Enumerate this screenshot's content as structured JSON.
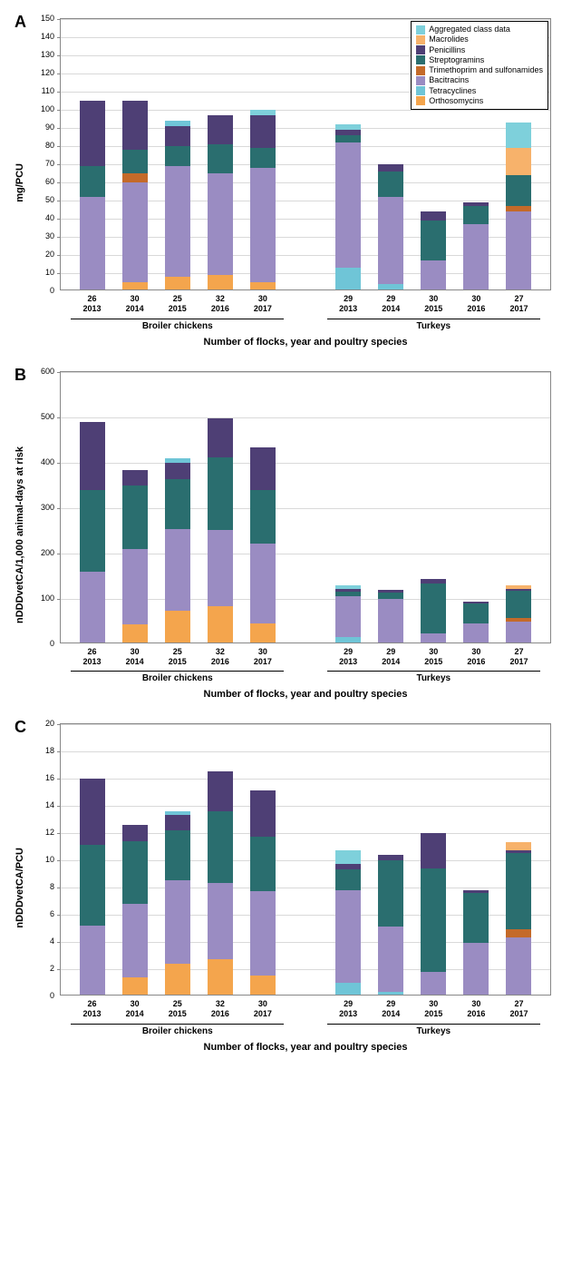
{
  "colors": {
    "aggregated": "#7ed0db",
    "macrolides": "#f7b26b",
    "penicillins": "#4e3f75",
    "streptogramins": "#2a6e6f",
    "trimethoprim": "#c46a29",
    "bacitracins": "#9a8cc2",
    "tetracyclines": "#6fc5d7",
    "orthosomycins": "#f4a54d",
    "grid": "#d9d9d9",
    "border": "#888888",
    "background": "#ffffff"
  },
  "legend": [
    {
      "key": "aggregated",
      "label": "Aggregated class data"
    },
    {
      "key": "macrolides",
      "label": "Macrolides"
    },
    {
      "key": "penicillins",
      "label": "Penicillins"
    },
    {
      "key": "streptogramins",
      "label": "Streptogramins"
    },
    {
      "key": "trimethoprim",
      "label": "Trimethoprim and sulfonamides"
    },
    {
      "key": "bacitracins",
      "label": "Bacitracins"
    },
    {
      "key": "tetracyclines",
      "label": "Tetracyclines"
    },
    {
      "key": "orthosomycins",
      "label": "Orthosomycins"
    }
  ],
  "x_categories": [
    {
      "flocks": "26",
      "year": "2013"
    },
    {
      "flocks": "30",
      "year": "2014"
    },
    {
      "flocks": "25",
      "year": "2015"
    },
    {
      "flocks": "32",
      "year": "2016"
    },
    {
      "flocks": "30",
      "year": "2017"
    },
    {
      "flocks": "",
      "year": ""
    },
    {
      "flocks": "29",
      "year": "2013"
    },
    {
      "flocks": "29",
      "year": "2014"
    },
    {
      "flocks": "30",
      "year": "2015"
    },
    {
      "flocks": "30",
      "year": "2016"
    },
    {
      "flocks": "27",
      "year": "2017"
    }
  ],
  "groups": [
    {
      "label": "Broiler chickens",
      "span": 5
    },
    {
      "label": "",
      "span": 1
    },
    {
      "label": "Turkeys",
      "span": 5
    }
  ],
  "x_title": "Number of flocks, year and poultry species",
  "panels": [
    {
      "id": "A",
      "ylabel": "mg/PCU",
      "ylim": [
        0,
        150
      ],
      "ytick_step": 10,
      "show_legend": true,
      "bars": [
        [
          {
            "k": "bacitracins",
            "v": 51
          },
          {
            "k": "streptogramins",
            "v": 17
          },
          {
            "k": "penicillins",
            "v": 36
          }
        ],
        [
          {
            "k": "orthosomycins",
            "v": 4
          },
          {
            "k": "bacitracins",
            "v": 55
          },
          {
            "k": "trimethoprim",
            "v": 5
          },
          {
            "k": "streptogramins",
            "v": 13
          },
          {
            "k": "penicillins",
            "v": 27
          }
        ],
        [
          {
            "k": "orthosomycins",
            "v": 7
          },
          {
            "k": "bacitracins",
            "v": 61
          },
          {
            "k": "streptogramins",
            "v": 11
          },
          {
            "k": "penicillins",
            "v": 11
          },
          {
            "k": "tetracyclines",
            "v": 3
          }
        ],
        [
          {
            "k": "orthosomycins",
            "v": 8
          },
          {
            "k": "bacitracins",
            "v": 56
          },
          {
            "k": "streptogramins",
            "v": 16
          },
          {
            "k": "penicillins",
            "v": 16
          }
        ],
        [
          {
            "k": "orthosomycins",
            "v": 4
          },
          {
            "k": "bacitracins",
            "v": 63
          },
          {
            "k": "streptogramins",
            "v": 11
          },
          {
            "k": "penicillins",
            "v": 18
          },
          {
            "k": "aggregated",
            "v": 3
          }
        ],
        [],
        [
          {
            "k": "tetracyclines",
            "v": 12
          },
          {
            "k": "bacitracins",
            "v": 69
          },
          {
            "k": "streptogramins",
            "v": 4
          },
          {
            "k": "penicillins",
            "v": 3
          },
          {
            "k": "aggregated",
            "v": 3
          }
        ],
        [
          {
            "k": "tetracyclines",
            "v": 3
          },
          {
            "k": "bacitracins",
            "v": 48
          },
          {
            "k": "streptogramins",
            "v": 14
          },
          {
            "k": "penicillins",
            "v": 4
          }
        ],
        [
          {
            "k": "bacitracins",
            "v": 16
          },
          {
            "k": "streptogramins",
            "v": 22
          },
          {
            "k": "penicillins",
            "v": 5
          }
        ],
        [
          {
            "k": "bacitracins",
            "v": 36
          },
          {
            "k": "streptogramins",
            "v": 10
          },
          {
            "k": "penicillins",
            "v": 2
          }
        ],
        [
          {
            "k": "bacitracins",
            "v": 43
          },
          {
            "k": "trimethoprim",
            "v": 3
          },
          {
            "k": "streptogramins",
            "v": 17
          },
          {
            "k": "macrolides",
            "v": 15
          },
          {
            "k": "aggregated",
            "v": 14
          }
        ]
      ]
    },
    {
      "id": "B",
      "ylabel": "nDDDvetCA/1,000 animal-days at risk",
      "ylim": [
        0,
        600
      ],
      "ytick_step": 100,
      "show_legend": false,
      "bars": [
        [
          {
            "k": "bacitracins",
            "v": 155
          },
          {
            "k": "streptogramins",
            "v": 180
          },
          {
            "k": "penicillins",
            "v": 150
          }
        ],
        [
          {
            "k": "orthosomycins",
            "v": 40
          },
          {
            "k": "bacitracins",
            "v": 165
          },
          {
            "k": "streptogramins",
            "v": 140
          },
          {
            "k": "penicillins",
            "v": 35
          }
        ],
        [
          {
            "k": "orthosomycins",
            "v": 70
          },
          {
            "k": "bacitracins",
            "v": 180
          },
          {
            "k": "streptogramins",
            "v": 110
          },
          {
            "k": "penicillins",
            "v": 35
          },
          {
            "k": "tetracyclines",
            "v": 10
          }
        ],
        [
          {
            "k": "orthosomycins",
            "v": 80
          },
          {
            "k": "bacitracins",
            "v": 168
          },
          {
            "k": "streptogramins",
            "v": 160
          },
          {
            "k": "penicillins",
            "v": 85
          }
        ],
        [
          {
            "k": "orthosomycins",
            "v": 42
          },
          {
            "k": "bacitracins",
            "v": 175
          },
          {
            "k": "streptogramins",
            "v": 118
          },
          {
            "k": "penicillins",
            "v": 95
          }
        ],
        [],
        [
          {
            "k": "tetracyclines",
            "v": 12
          },
          {
            "k": "bacitracins",
            "v": 90
          },
          {
            "k": "streptogramins",
            "v": 10
          },
          {
            "k": "penicillins",
            "v": 6
          },
          {
            "k": "aggregated",
            "v": 8
          }
        ],
        [
          {
            "k": "bacitracins",
            "v": 95
          },
          {
            "k": "streptogramins",
            "v": 15
          },
          {
            "k": "penicillins",
            "v": 5
          }
        ],
        [
          {
            "k": "bacitracins",
            "v": 20
          },
          {
            "k": "streptogramins",
            "v": 110
          },
          {
            "k": "penicillins",
            "v": 10
          }
        ],
        [
          {
            "k": "bacitracins",
            "v": 42
          },
          {
            "k": "streptogramins",
            "v": 44
          },
          {
            "k": "penicillins",
            "v": 3
          }
        ],
        [
          {
            "k": "bacitracins",
            "v": 46
          },
          {
            "k": "trimethoprim",
            "v": 8
          },
          {
            "k": "streptogramins",
            "v": 60
          },
          {
            "k": "penicillins",
            "v": 4
          },
          {
            "k": "macrolides",
            "v": 8
          }
        ]
      ]
    },
    {
      "id": "C",
      "ylabel": "nDDDvetCA/PCU",
      "ylim": [
        0,
        20
      ],
      "ytick_step": 2,
      "show_legend": false,
      "bars": [
        [
          {
            "k": "bacitracins",
            "v": 5.1
          },
          {
            "k": "streptogramins",
            "v": 5.9
          },
          {
            "k": "penicillins",
            "v": 4.9
          }
        ],
        [
          {
            "k": "orthosomycins",
            "v": 1.3
          },
          {
            "k": "bacitracins",
            "v": 5.4
          },
          {
            "k": "streptogramins",
            "v": 4.6
          },
          {
            "k": "penicillins",
            "v": 1.2
          }
        ],
        [
          {
            "k": "orthosomycins",
            "v": 2.3
          },
          {
            "k": "bacitracins",
            "v": 6.1
          },
          {
            "k": "streptogramins",
            "v": 3.7
          },
          {
            "k": "penicillins",
            "v": 1.1
          },
          {
            "k": "tetracyclines",
            "v": 0.3
          }
        ],
        [
          {
            "k": "orthosomycins",
            "v": 2.6
          },
          {
            "k": "bacitracins",
            "v": 5.6
          },
          {
            "k": "streptogramins",
            "v": 5.3
          },
          {
            "k": "penicillins",
            "v": 2.9
          }
        ],
        [
          {
            "k": "orthosomycins",
            "v": 1.4
          },
          {
            "k": "bacitracins",
            "v": 6.2
          },
          {
            "k": "streptogramins",
            "v": 4.0
          },
          {
            "k": "penicillins",
            "v": 3.4
          }
        ],
        [],
        [
          {
            "k": "tetracyclines",
            "v": 0.9
          },
          {
            "k": "bacitracins",
            "v": 6.8
          },
          {
            "k": "streptogramins",
            "v": 1.5
          },
          {
            "k": "penicillins",
            "v": 0.4
          },
          {
            "k": "aggregated",
            "v": 1.0
          }
        ],
        [
          {
            "k": "tetracyclines",
            "v": 0.2
          },
          {
            "k": "bacitracins",
            "v": 4.8
          },
          {
            "k": "streptogramins",
            "v": 4.9
          },
          {
            "k": "penicillins",
            "v": 0.4
          }
        ],
        [
          {
            "k": "bacitracins",
            "v": 1.7
          },
          {
            "k": "streptogramins",
            "v": 7.6
          },
          {
            "k": "penicillins",
            "v": 2.6
          }
        ],
        [
          {
            "k": "bacitracins",
            "v": 3.8
          },
          {
            "k": "streptogramins",
            "v": 3.7
          },
          {
            "k": "penicillins",
            "v": 0.2
          }
        ],
        [
          {
            "k": "bacitracins",
            "v": 4.2
          },
          {
            "k": "trimethoprim",
            "v": 0.6
          },
          {
            "k": "streptogramins",
            "v": 5.6
          },
          {
            "k": "penicillins",
            "v": 0.2
          },
          {
            "k": "macrolides",
            "v": 0.6
          }
        ]
      ]
    }
  ]
}
